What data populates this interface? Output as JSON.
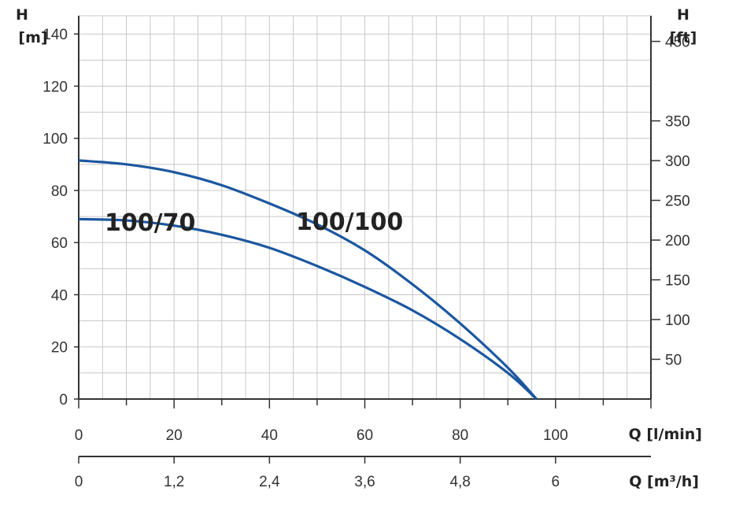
{
  "chart_data": {
    "type": "line",
    "title": "",
    "left_axis": {
      "label_line1": "H",
      "label_line2": "[m]",
      "ticks": [
        0,
        20,
        40,
        60,
        80,
        100,
        120,
        140
      ],
      "ylim": [
        0,
        147
      ]
    },
    "right_axis": {
      "label_line1": "H",
      "label_line2": "[ft]",
      "ticks": [
        50,
        100,
        150,
        200,
        250,
        300,
        350,
        450
      ],
      "tick_labels": [
        "50",
        "100",
        "150",
        "200",
        "250",
        "300",
        "350",
        "450"
      ]
    },
    "x_axis_primary": {
      "label": "Q [l/min]",
      "ticks": [
        0,
        20,
        40,
        60,
        80,
        100
      ],
      "xlim": [
        0,
        120
      ],
      "grid_step": 5
    },
    "x_axis_secondary": {
      "label": "Q [m³/h]",
      "ticks": [
        0,
        1.2,
        2.4,
        3.6,
        4.8,
        6
      ],
      "tick_labels": [
        "0",
        "1,2",
        "2,4",
        "3,6",
        "4,8",
        "6"
      ]
    },
    "grid": true,
    "series": [
      {
        "name": "100/100",
        "color": "#1c57a0",
        "x": [
          0,
          10,
          20,
          30,
          40,
          50,
          60,
          70,
          80,
          90,
          96
        ],
        "y": [
          91.5,
          90,
          87,
          82,
          75,
          67,
          57,
          44,
          29,
          12,
          0
        ]
      },
      {
        "name": "100/70",
        "color": "#1c57a0",
        "x": [
          0,
          10,
          20,
          30,
          40,
          50,
          60,
          70,
          80,
          90,
          96
        ],
        "y": [
          69,
          68.5,
          66.5,
          63,
          58,
          51,
          43,
          34,
          23,
          10,
          0
        ]
      }
    ]
  }
}
